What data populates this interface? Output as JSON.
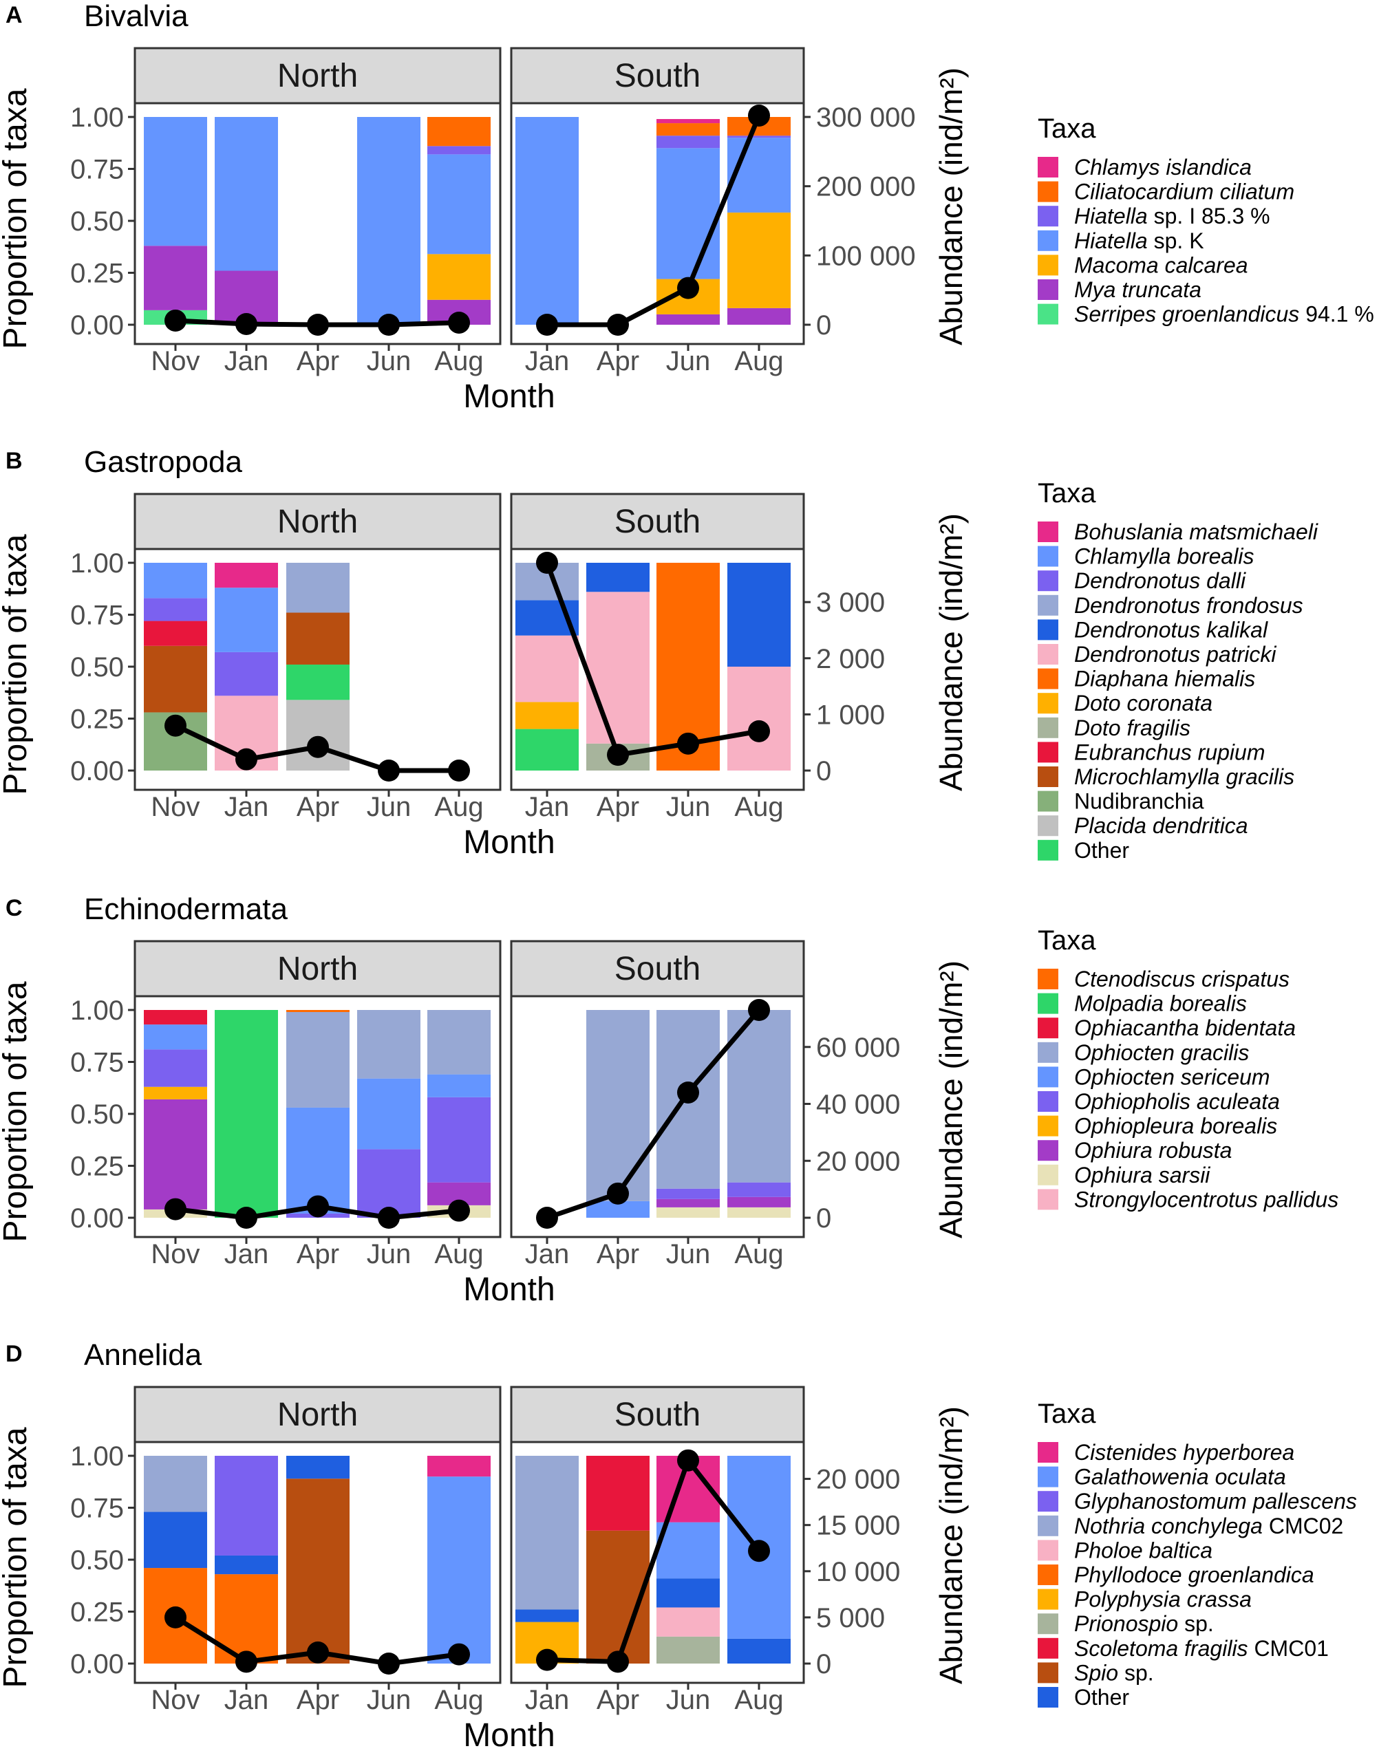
{
  "common": {
    "xlabel": "Month",
    "ylabel": "Proportion of taxa",
    "y2label": "Abundance (ind/m²)",
    "legend_title": "Taxa",
    "facets": [
      "North",
      "South"
    ],
    "north_months": [
      "Nov",
      "Jan",
      "Apr",
      "Jun",
      "Aug"
    ],
    "south_months": [
      "Jan",
      "Apr",
      "Jun",
      "Aug"
    ],
    "yticks": [
      "0.00",
      "0.25",
      "0.50",
      "0.75",
      "1.00"
    ]
  },
  "chart_data": [
    {
      "type": "bar",
      "panel": "A",
      "title": "Bivalvia",
      "xlabel": "Month",
      "ylabel": "Proportion of taxa",
      "y2label": "Abundance (ind/m²)",
      "ylim": [
        0,
        1
      ],
      "y2lim": [
        0,
        300000
      ],
      "y2ticks": [
        0,
        100000,
        200000,
        300000
      ],
      "y2ticklabels": [
        "0",
        "100 000",
        "200 000",
        "300 000"
      ],
      "taxa": [
        {
          "parts": [
            {
              "t": "Chlamys islandica",
              "i": true
            }
          ],
          "color": "#e7298a"
        },
        {
          "parts": [
            {
              "t": "Ciliatocardium ciliatum",
              "i": true
            }
          ],
          "color": "#ff6a00"
        },
        {
          "parts": [
            {
              "t": "Hiatella",
              "i": true
            },
            {
              "t": " sp. I 85.3 %",
              "i": false
            }
          ],
          "color": "#7b61f0"
        },
        {
          "parts": [
            {
              "t": "Hiatella",
              "i": true
            },
            {
              "t": " sp. K",
              "i": false
            }
          ],
          "color": "#6495ff"
        },
        {
          "parts": [
            {
              "t": "Macoma calcarea",
              "i": true
            }
          ],
          "color": "#ffb000"
        },
        {
          "parts": [
            {
              "t": "Mya truncata",
              "i": true
            }
          ],
          "color": "#a33bc7"
        },
        {
          "parts": [
            {
              "t": "Serripes groenlandicus",
              "i": true
            },
            {
              "t": " 94.1 %",
              "i": false
            }
          ],
          "color": "#4ae387"
        }
      ],
      "north": {
        "categories": [
          "Nov",
          "Jan",
          "Apr",
          "Jun",
          "Aug"
        ],
        "stacks": [
          [
            [
              6,
              0.07
            ],
            [
              5,
              0.31
            ],
            [
              3,
              0.62
            ]
          ],
          [
            [
              5,
              0.26
            ],
            [
              3,
              0.74
            ]
          ],
          [],
          [
            [
              3,
              1.0
            ]
          ],
          [
            [
              5,
              0.12
            ],
            [
              4,
              0.22
            ],
            [
              3,
              0.48
            ],
            [
              2,
              0.04
            ],
            [
              1,
              0.14
            ]
          ]
        ],
        "abundance": [
          6000,
          1000,
          0,
          0,
          3000
        ]
      },
      "south": {
        "categories": [
          "Jan",
          "Apr",
          "Jun",
          "Aug"
        ],
        "stacks": [
          [
            [
              3,
              1.0
            ]
          ],
          [],
          [
            [
              5,
              0.05
            ],
            [
              4,
              0.17
            ],
            [
              3,
              0.63
            ],
            [
              2,
              0.06
            ],
            [
              1,
              0.06
            ],
            [
              0,
              0.02
            ]
          ],
          [
            [
              5,
              0.08
            ],
            [
              4,
              0.46
            ],
            [
              3,
              0.36
            ],
            [
              2,
              0.01
            ],
            [
              1,
              0.09
            ]
          ]
        ],
        "abundance": [
          0,
          0,
          53000,
          302000
        ]
      }
    },
    {
      "type": "bar",
      "panel": "B",
      "title": "Gastropoda",
      "xlabel": "Month",
      "ylabel": "Proportion of taxa",
      "y2label": "Abundance (ind/m²)",
      "ylim": [
        0,
        1
      ],
      "y2lim": [
        0,
        3700
      ],
      "y2ticks": [
        0,
        1000,
        2000,
        3000
      ],
      "y2ticklabels": [
        "0",
        "1 000",
        "2 000",
        "3 000"
      ],
      "taxa": [
        {
          "parts": [
            {
              "t": "Bohuslania matsmichaeli",
              "i": true
            }
          ],
          "color": "#e7298a"
        },
        {
          "parts": [
            {
              "t": "Chlamylla borealis",
              "i": true
            }
          ],
          "color": "#6495ff"
        },
        {
          "parts": [
            {
              "t": "Dendronotus dalli",
              "i": true
            }
          ],
          "color": "#7b61f0"
        },
        {
          "parts": [
            {
              "t": "Dendronotus frondosus",
              "i": true
            }
          ],
          "color": "#97a8d4"
        },
        {
          "parts": [
            {
              "t": "Dendronotus kalikal",
              "i": true
            }
          ],
          "color": "#1f5fe0"
        },
        {
          "parts": [
            {
              "t": "Dendronotus patricki",
              "i": true
            }
          ],
          "color": "#f8b1c4"
        },
        {
          "parts": [
            {
              "t": "Diaphana hiemalis",
              "i": true
            }
          ],
          "color": "#ff6a00"
        },
        {
          "parts": [
            {
              "t": "Doto coronata",
              "i": true
            }
          ],
          "color": "#ffb000"
        },
        {
          "parts": [
            {
              "t": "Doto fragilis",
              "i": true
            }
          ],
          "color": "#a7b49c"
        },
        {
          "parts": [
            {
              "t": "Eubranchus rupium",
              "i": true
            }
          ],
          "color": "#e8163c"
        },
        {
          "parts": [
            {
              "t": "Microchlamylla gracilis",
              "i": true
            }
          ],
          "color": "#b84e10"
        },
        {
          "parts": [
            {
              "t": "Nudibranchia",
              "i": false
            }
          ],
          "color": "#86b07a"
        },
        {
          "parts": [
            {
              "t": "Placida dendritica",
              "i": true
            }
          ],
          "color": "#c0c0c0"
        },
        {
          "parts": [
            {
              "t": "Other",
              "i": false
            }
          ],
          "color": "#2ed669"
        }
      ],
      "north": {
        "categories": [
          "Nov",
          "Jan",
          "Apr",
          "Jun",
          "Aug"
        ],
        "stacks": [
          [
            [
              11,
              0.28
            ],
            [
              10,
              0.32
            ],
            [
              9,
              0.12
            ],
            [
              2,
              0.11
            ],
            [
              1,
              0.17
            ]
          ],
          [
            [
              5,
              0.36
            ],
            [
              2,
              0.21
            ],
            [
              1,
              0.31
            ],
            [
              0,
              0.12
            ]
          ],
          [
            [
              12,
              0.34
            ],
            [
              13,
              0.17
            ],
            [
              10,
              0.25
            ],
            [
              3,
              0.24
            ]
          ],
          [],
          []
        ],
        "abundance": [
          800,
          200,
          420,
          0,
          0
        ]
      },
      "south": {
        "categories": [
          "Jan",
          "Apr",
          "Jun",
          "Aug"
        ],
        "stacks": [
          [
            [
              13,
              0.2
            ],
            [
              7,
              0.13
            ],
            [
              5,
              0.32
            ],
            [
              4,
              0.17
            ],
            [
              3,
              0.18
            ]
          ],
          [
            [
              8,
              0.13
            ],
            [
              5,
              0.73
            ],
            [
              4,
              0.14
            ]
          ],
          [
            [
              6,
              1.0
            ]
          ],
          [
            [
              5,
              0.5
            ],
            [
              4,
              0.5
            ]
          ]
        ],
        "abundance": [
          3700,
          280,
          480,
          700
        ]
      }
    },
    {
      "type": "bar",
      "panel": "C",
      "title": "Echinodermata",
      "xlabel": "Month",
      "ylabel": "Proportion of taxa",
      "y2label": "Abundance (ind/m²)",
      "ylim": [
        0,
        1
      ],
      "y2lim": [
        0,
        73000
      ],
      "y2ticks": [
        0,
        20000,
        40000,
        60000
      ],
      "y2ticklabels": [
        "0",
        "20 000",
        "40 000",
        "60 000"
      ],
      "taxa": [
        {
          "parts": [
            {
              "t": "Ctenodiscus crispatus",
              "i": true
            }
          ],
          "color": "#ff6a00"
        },
        {
          "parts": [
            {
              "t": "Molpadia borealis",
              "i": true
            }
          ],
          "color": "#2ed669"
        },
        {
          "parts": [
            {
              "t": "Ophiacantha bidentata",
              "i": true
            }
          ],
          "color": "#e8163c"
        },
        {
          "parts": [
            {
              "t": "Ophiocten gracilis",
              "i": true
            }
          ],
          "color": "#97a8d4"
        },
        {
          "parts": [
            {
              "t": "Ophiocten sericeum",
              "i": true
            }
          ],
          "color": "#6495ff"
        },
        {
          "parts": [
            {
              "t": "Ophiopholis aculeata",
              "i": true
            }
          ],
          "color": "#7b61f0"
        },
        {
          "parts": [
            {
              "t": "Ophiopleura borealis",
              "i": true
            }
          ],
          "color": "#ffb000"
        },
        {
          "parts": [
            {
              "t": "Ophiura robusta",
              "i": true
            }
          ],
          "color": "#a33bc7"
        },
        {
          "parts": [
            {
              "t": "Ophiura sarsii",
              "i": true
            }
          ],
          "color": "#e8e2b8"
        },
        {
          "parts": [
            {
              "t": "Strongylocentrotus pallidus",
              "i": true
            }
          ],
          "color": "#f8b1c4"
        }
      ],
      "north": {
        "categories": [
          "Nov",
          "Jan",
          "Apr",
          "Jun",
          "Aug"
        ],
        "stacks": [
          [
            [
              8,
              0.04
            ],
            [
              7,
              0.53
            ],
            [
              6,
              0.06
            ],
            [
              5,
              0.18
            ],
            [
              4,
              0.12
            ],
            [
              2,
              0.07
            ]
          ],
          [
            [
              1,
              1.0
            ]
          ],
          [
            [
              5,
              0.02
            ],
            [
              4,
              0.51
            ],
            [
              3,
              0.46
            ],
            [
              0,
              0.01
            ]
          ],
          [
            [
              5,
              0.33
            ],
            [
              4,
              0.34
            ],
            [
              3,
              0.33
            ]
          ],
          [
            [
              8,
              0.06
            ],
            [
              7,
              0.11
            ],
            [
              5,
              0.41
            ],
            [
              4,
              0.11
            ],
            [
              3,
              0.31
            ]
          ]
        ],
        "abundance": [
          3000,
          0,
          4000,
          0,
          2500
        ]
      },
      "south": {
        "categories": [
          "Jan",
          "Apr",
          "Jun",
          "Aug"
        ],
        "stacks": [
          [],
          [
            [
              4,
              0.08
            ],
            [
              3,
              0.92
            ]
          ],
          [
            [
              8,
              0.05
            ],
            [
              7,
              0.04
            ],
            [
              5,
              0.05
            ],
            [
              3,
              0.86
            ]
          ],
          [
            [
              8,
              0.05
            ],
            [
              7,
              0.05
            ],
            [
              5,
              0.07
            ],
            [
              3,
              0.83
            ]
          ]
        ],
        "abundance": [
          0,
          8500,
          44000,
          73000
        ]
      }
    },
    {
      "type": "bar",
      "panel": "D",
      "title": "Annelida",
      "xlabel": "Month",
      "ylabel": "Proportion of taxa",
      "y2label": "Abundance (ind/m²)",
      "ylim": [
        0,
        1
      ],
      "y2lim": [
        0,
        22500
      ],
      "y2ticks": [
        0,
        5000,
        10000,
        15000,
        20000
      ],
      "y2ticklabels": [
        "0",
        "5 000",
        "10 000",
        "15 000",
        "20 000"
      ],
      "taxa": [
        {
          "parts": [
            {
              "t": "Cistenides hyperborea",
              "i": true
            }
          ],
          "color": "#e7298a"
        },
        {
          "parts": [
            {
              "t": "Galathowenia oculata",
              "i": true
            }
          ],
          "color": "#6495ff"
        },
        {
          "parts": [
            {
              "t": "Glyphanostomum pallescens",
              "i": true
            }
          ],
          "color": "#7b61f0"
        },
        {
          "parts": [
            {
              "t": "Nothria conchylega",
              "i": true
            },
            {
              "t": " CMC02",
              "i": false
            }
          ],
          "color": "#97a8d4"
        },
        {
          "parts": [
            {
              "t": "Pholoe baltica",
              "i": true
            }
          ],
          "color": "#f8b1c4"
        },
        {
          "parts": [
            {
              "t": "Phyllodoce groenlandica",
              "i": true
            }
          ],
          "color": "#ff6a00"
        },
        {
          "parts": [
            {
              "t": "Polyphysia crassa",
              "i": true
            }
          ],
          "color": "#ffb000"
        },
        {
          "parts": [
            {
              "t": "Prionospio",
              "i": true
            },
            {
              "t": " sp.",
              "i": false
            }
          ],
          "color": "#a7b49c"
        },
        {
          "parts": [
            {
              "t": "Scoletoma fragilis",
              "i": true
            },
            {
              "t": " CMC01",
              "i": false
            }
          ],
          "color": "#e8163c"
        },
        {
          "parts": [
            {
              "t": "Spio",
              "i": true
            },
            {
              "t": " sp.",
              "i": false
            }
          ],
          "color": "#b84e10"
        },
        {
          "parts": [
            {
              "t": "Other",
              "i": false
            }
          ],
          "color": "#1f5fe0"
        }
      ],
      "north": {
        "categories": [
          "Nov",
          "Jan",
          "Apr",
          "Jun",
          "Aug"
        ],
        "stacks": [
          [
            [
              5,
              0.46
            ],
            [
              10,
              0.27
            ],
            [
              3,
              0.27
            ]
          ],
          [
            [
              5,
              0.43
            ],
            [
              10,
              0.09
            ],
            [
              2,
              0.48
            ]
          ],
          [
            [
              9,
              0.89
            ],
            [
              10,
              0.11
            ]
          ],
          [],
          [
            [
              1,
              0.9
            ],
            [
              0,
              0.1
            ]
          ]
        ],
        "abundance": [
          5000,
          200,
          1200,
          0,
          1000
        ]
      },
      "south": {
        "categories": [
          "Jan",
          "Apr",
          "Jun",
          "Aug"
        ],
        "stacks": [
          [
            [
              6,
              0.2
            ],
            [
              10,
              0.06
            ],
            [
              3,
              0.74
            ]
          ],
          [
            [
              9,
              0.64
            ],
            [
              8,
              0.36
            ]
          ],
          [
            [
              7,
              0.13
            ],
            [
              4,
              0.14
            ],
            [
              10,
              0.14
            ],
            [
              1,
              0.27
            ],
            [
              0,
              0.32
            ]
          ],
          [
            [
              10,
              0.12
            ],
            [
              1,
              0.88
            ]
          ]
        ],
        "abundance": [
          400,
          200,
          22000,
          12200
        ]
      }
    }
  ]
}
